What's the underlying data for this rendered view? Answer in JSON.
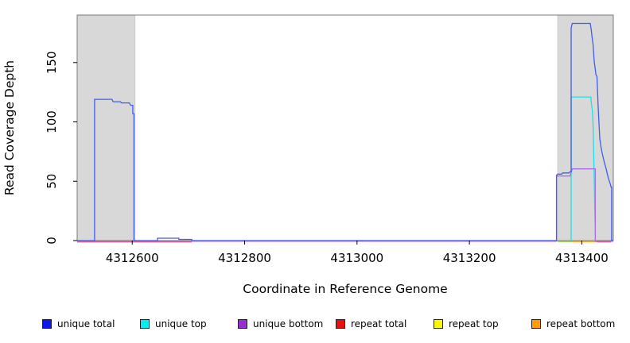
{
  "chart_data": {
    "type": "line",
    "title": "",
    "xlabel": "Coordinate in Reference Genome",
    "ylabel": "Read Coverage Depth",
    "xlim": [
      4312502,
      4313456
    ],
    "ylim": [
      0,
      190
    ],
    "x_ticks": [
      4312600,
      4312800,
      4313000,
      4313200,
      4313400
    ],
    "y_ticks": [
      0,
      50,
      100,
      150
    ],
    "grid": false,
    "legend_position": "bottom",
    "box_color": "#7a7a7a",
    "highlight_regions": [
      {
        "x0": 4312502,
        "x1": 4312605,
        "color": "#d8d8d8",
        "edge": "#c6c6c6"
      },
      {
        "x0": 4313357,
        "x1": 4313456,
        "color": "#d8d8d8",
        "edge": "#c6c6c6"
      }
    ],
    "series": [
      {
        "name": "unique top",
        "color": "#1fdfe8",
        "segments": [
          [
            [
              4313381,
              0
            ],
            [
              4313381,
              121
            ],
            [
              4313416,
              121
            ],
            [
              4313417,
              116
            ],
            [
              4313419,
              108
            ],
            [
              4313420,
              97
            ],
            [
              4313421,
              77
            ],
            [
              4313422,
              52
            ],
            [
              4313423,
              25
            ],
            [
              4313424,
              6
            ],
            [
              4313424,
              0
            ]
          ]
        ]
      },
      {
        "name": "repeat top",
        "color": "#9ccd5a",
        "segments": [
          [
            [
              4313357,
              0
            ],
            [
              4313383,
              0
            ]
          ]
        ]
      },
      {
        "name": "repeat bottom",
        "color": "#ff9d1e",
        "segments": [
          [
            [
              4313383,
              0
            ],
            [
              4313427,
              0
            ]
          ]
        ]
      },
      {
        "name": "repeat total",
        "color": "#f8506a",
        "segments": [
          [
            [
              4312502,
              0
            ],
            [
              4312706,
              0
            ]
          ],
          [
            [
              4313427,
              0
            ],
            [
              4313452,
              0
            ]
          ]
        ]
      },
      {
        "name": "unique bottom",
        "color": "#a671dd",
        "segments": [
          [
            [
              4312502,
              0
            ],
            [
              4313355,
              0
            ],
            [
              4313355,
              55
            ],
            [
              4313379,
              55
            ],
            [
              4313381,
              58
            ],
            [
              4313383,
              61
            ],
            [
              4313424,
              61
            ],
            [
              4313424,
              0
            ],
            [
              4313456,
              0
            ]
          ]
        ]
      },
      {
        "name": "unique total",
        "color": "#3f5df0",
        "segments": [
          [
            [
              4312502,
              0
            ],
            [
              4312533,
              0
            ],
            [
              4312533,
              119
            ],
            [
              4312564,
              119
            ],
            [
              4312566,
              117
            ],
            [
              4312579,
              117
            ],
            [
              4312581,
              116
            ],
            [
              4312595,
              116
            ],
            [
              4312597,
              114
            ],
            [
              4312601,
              114
            ],
            [
              4312601,
              107
            ],
            [
              4312603,
              107
            ],
            [
              4312603,
              0
            ],
            [
              4312645,
              0
            ],
            [
              4312645,
              2
            ],
            [
              4312683,
              2
            ],
            [
              4312683,
              1
            ],
            [
              4312706,
              1
            ],
            [
              4312706,
              0
            ],
            [
              4313355,
              0
            ],
            [
              4313355,
              55
            ],
            [
              4313357,
              56
            ],
            [
              4313364,
              56
            ],
            [
              4313366,
              57
            ],
            [
              4313377,
              57
            ],
            [
              4313379,
              58
            ],
            [
              4313381,
              58
            ],
            [
              4313381,
              179
            ],
            [
              4313383,
              183
            ],
            [
              4313415,
              183
            ],
            [
              4313417,
              177
            ],
            [
              4313418,
              172
            ],
            [
              4313420,
              165
            ],
            [
              4313421,
              158
            ],
            [
              4313422,
              151
            ],
            [
              4313424,
              144
            ],
            [
              4313425,
              140
            ],
            [
              4313427,
              138
            ],
            [
              4313428,
              126
            ],
            [
              4313429,
              114
            ],
            [
              4313430,
              104
            ],
            [
              4313431,
              95
            ],
            [
              4313432,
              86
            ],
            [
              4313434,
              79
            ],
            [
              4313436,
              74
            ],
            [
              4313438,
              70
            ],
            [
              4313440,
              66
            ],
            [
              4313443,
              61
            ],
            [
              4313445,
              57
            ],
            [
              4313447,
              53
            ],
            [
              4313449,
              50
            ],
            [
              4313451,
              47
            ],
            [
              4313452,
              45
            ],
            [
              4313453,
              45
            ],
            [
              4313453,
              0
            ],
            [
              4313456,
              0
            ]
          ]
        ]
      }
    ]
  },
  "legend": {
    "items": [
      {
        "label": "unique total",
        "color": "#0b16f2"
      },
      {
        "label": "unique top",
        "color": "#00f0f0"
      },
      {
        "label": "unique bottom",
        "color": "#9a2fd0"
      },
      {
        "label": "repeat total",
        "color": "#ea1010"
      },
      {
        "label": "repeat top",
        "color": "#fbfb00"
      },
      {
        "label": "repeat bottom",
        "color": "#ff9d00"
      }
    ]
  }
}
